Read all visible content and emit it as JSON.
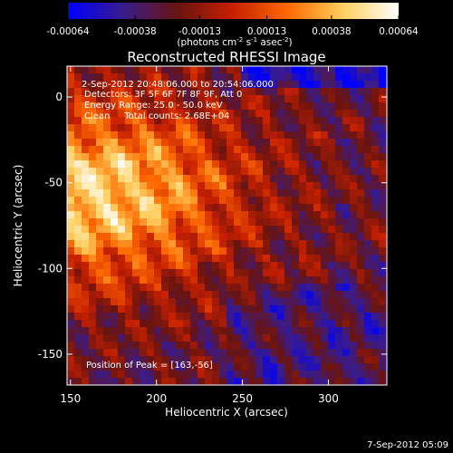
{
  "colorbar": {
    "tick_labels": [
      "-0.00064",
      "-0.00038",
      "-0.00013",
      "0.00013",
      "0.00038",
      "0.00064"
    ],
    "tick_values": [
      -0.00064,
      -0.00038,
      -0.00013,
      0.00013,
      0.00038,
      0.00064
    ],
    "range": [
      -0.00064,
      0.00064
    ],
    "units_parts": {
      "p1": "(photons cm",
      "e1": "-2",
      "p2": " s",
      "e2": "-1",
      "p3": " asec",
      "e3": "-2",
      "p4": ")"
    },
    "stops": [
      "#0000ff",
      "#3a1c8a",
      "#6a1410",
      "#c82000",
      "#ff6a00",
      "#ffd060",
      "#ffffff"
    ]
  },
  "chart_data": {
    "type": "heatmap",
    "title": "Reconstructed RHESSI Image",
    "xlabel": "Heliocentric X (arcsec)",
    "ylabel": "Heliocentric Y (arcsec)",
    "xlim": [
      148,
      334
    ],
    "ylim": [
      -168,
      18
    ],
    "xticks": [
      150,
      200,
      250,
      300
    ],
    "yticks": [
      0,
      -50,
      -100,
      -150
    ],
    "xtick_labels": [
      "150",
      "200",
      "250",
      "300"
    ],
    "ytick_labels": [
      "0",
      "-50",
      "-100",
      "-150"
    ],
    "annotations": [
      "2-Sep-2012 20:48:06.000 to 20:54:06.000",
      "Detectors: 3F 5F 6F 7F 8F 9F, Att 0",
      "Energy Range: 25.0 - 50.0 keV",
      "Clean     Total counts: 2.68E+04"
    ],
    "peak_label": "Position of Peak = [163,-56]",
    "peak": [
      163,
      -56
    ]
  },
  "timestamp": "7-Sep-2012 05:09"
}
